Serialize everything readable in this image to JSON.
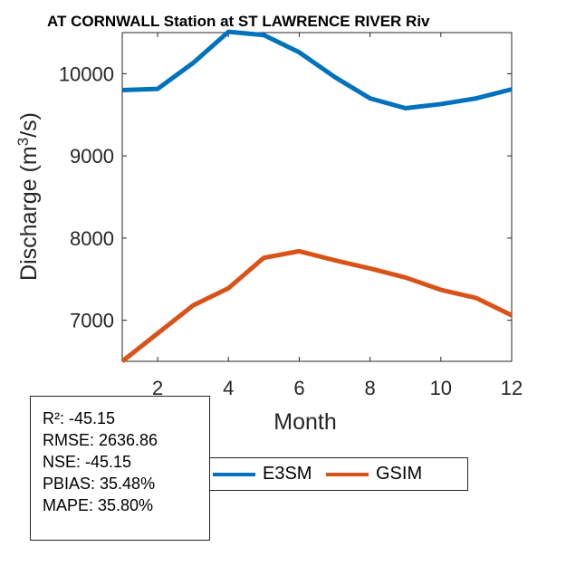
{
  "chart_data": {
    "type": "line",
    "title": "AT CORNWALL  Station at  ST LAWRENCE RIVER  Riv",
    "xlabel": "Month",
    "ylabel_main": "Discharge (m",
    "ylabel_sup": "3",
    "ylabel_end": "/s)",
    "xlim": [
      1,
      12
    ],
    "ylim": [
      6500,
      10500
    ],
    "xticks": [
      2,
      4,
      6,
      8,
      10,
      12
    ],
    "yticks": [
      7000,
      8000,
      9000,
      10000
    ],
    "x": [
      1,
      2,
      3,
      4,
      5,
      6,
      7,
      8,
      9,
      10,
      11,
      12
    ],
    "series": [
      {
        "name": "E3SM",
        "color": "#0072BD",
        "values": [
          9800,
          9815,
          10130,
          10510,
          10470,
          10260,
          9960,
          9700,
          9580,
          9630,
          9700,
          9810
        ]
      },
      {
        "name": "GSIM",
        "color": "#D95319",
        "values": [
          6500,
          6840,
          7180,
          7390,
          7760,
          7840,
          7730,
          7630,
          7520,
          7370,
          7270,
          7060
        ]
      }
    ]
  },
  "stats": {
    "r2": "R²: -45.15",
    "rmse": "RMSE: 2636.86",
    "nse": "NSE: -45.15",
    "pbias": "PBIAS: 35.48%",
    "mape": "MAPE: 35.80%"
  },
  "legend": {
    "e3sm_label": "E3SM",
    "gsim_label": "GSIM",
    "e3sm_color": "#0072BD",
    "gsim_color": "#D95319"
  }
}
